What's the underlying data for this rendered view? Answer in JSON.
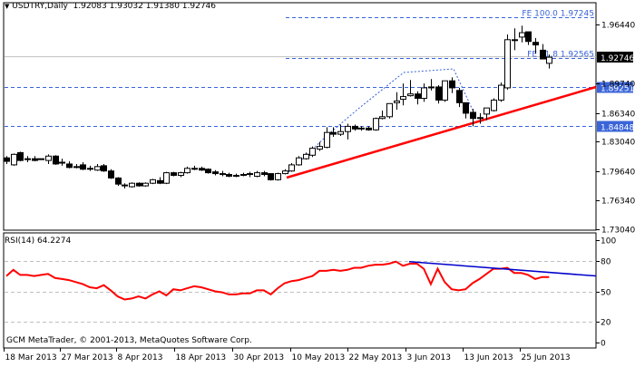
{
  "header": {
    "symbol_timeframe": "USDTRY,Daily",
    "ohlc": "1.92083 1.93032 1.91380 1.92746",
    "dropdown_icon": "triangle-down-icon"
  },
  "rsi_panel": {
    "title": "RSI(14) 64.2274"
  },
  "footer": {
    "copyright": "GCM MetaTrader, © 2001-2013, MetaQuotes Software Corp."
  },
  "colors": {
    "background": "#ffffff",
    "axis": "#000000",
    "level_line": "#3a64d8",
    "level_label_bg": "#3a64d8",
    "trendline": "#ff0000",
    "rsi_line": "#ff0000",
    "rsi_divergence_line": "#0000cc",
    "current_price_line": "#c0c0c0",
    "grid_dash": "#c0c0c0"
  },
  "chart_data": [
    {
      "type": "candlestick",
      "title": "USDTRY,Daily 1.92083 1.93032 1.91380 1.92746",
      "xlabel": "",
      "ylabel": "",
      "ylim": [
        1.7304,
        1.9724
      ],
      "y_ticks": [
        "1.96440",
        "1.92746",
        "1.89740",
        "1.86340",
        "1.83040",
        "1.79640",
        "1.76340",
        "1.73040"
      ],
      "x_ticks": [
        "18 Mar 2013",
        "27 Mar 2013",
        "8 Apr 2013",
        "18 Apr 2013",
        "30 Apr 2013",
        "10 May 2013",
        "22 May 2013",
        "3 Jun 2013",
        "13 Jun 2013",
        "25 Jun 2013"
      ],
      "current_price": {
        "label": "1.92746",
        "value": 1.92746
      },
      "horizontal_levels": [
        {
          "label": "FE 100.0 1.97245",
          "value": 1.97245
        },
        {
          "label": "61.8 1.92565",
          "value": 1.92565,
          "full_label": "FE 61.8 1.92565"
        },
        {
          "label": "1.89251",
          "value": 1.89251
        },
        {
          "label": "1.84848",
          "value": 1.84848
        }
      ],
      "trendline": {
        "from": {
          "date": "~8 May 2013",
          "value": 1.786
        },
        "to": {
          "date": "right edge",
          "value": 1.893
        }
      },
      "candles": [
        {
          "o": 1.812,
          "h": 1.814,
          "l": 1.805,
          "c": 1.808
        },
        {
          "o": 1.804,
          "h": 1.817,
          "l": 1.803,
          "c": 1.816
        },
        {
          "o": 1.818,
          "h": 1.819,
          "l": 1.808,
          "c": 1.809
        },
        {
          "o": 1.81,
          "h": 1.814,
          "l": 1.807,
          "c": 1.811
        },
        {
          "o": 1.811,
          "h": 1.814,
          "l": 1.808,
          "c": 1.809
        },
        {
          "o": 1.811,
          "h": 1.811,
          "l": 1.811,
          "c": 1.811
        },
        {
          "o": 1.809,
          "h": 1.816,
          "l": 1.805,
          "c": 1.814
        },
        {
          "o": 1.814,
          "h": 1.815,
          "l": 1.804,
          "c": 1.805
        },
        {
          "o": 1.807,
          "h": 1.811,
          "l": 1.803,
          "c": 1.806
        },
        {
          "o": 1.805,
          "h": 1.808,
          "l": 1.8,
          "c": 1.801
        },
        {
          "o": 1.802,
          "h": 1.805,
          "l": 1.8,
          "c": 1.801
        },
        {
          "o": 1.804,
          "h": 1.807,
          "l": 1.798,
          "c": 1.799
        },
        {
          "o": 1.8,
          "h": 1.803,
          "l": 1.797,
          "c": 1.799
        },
        {
          "o": 1.798,
          "h": 1.805,
          "l": 1.797,
          "c": 1.802
        },
        {
          "o": 1.803,
          "h": 1.805,
          "l": 1.796,
          "c": 1.797
        },
        {
          "o": 1.797,
          "h": 1.799,
          "l": 1.788,
          "c": 1.789
        },
        {
          "o": 1.789,
          "h": 1.79,
          "l": 1.78,
          "c": 1.782
        },
        {
          "o": 1.781,
          "h": 1.783,
          "l": 1.777,
          "c": 1.78
        },
        {
          "o": 1.779,
          "h": 1.784,
          "l": 1.778,
          "c": 1.783
        },
        {
          "o": 1.783,
          "h": 1.784,
          "l": 1.779,
          "c": 1.78
        },
        {
          "o": 1.78,
          "h": 1.784,
          "l": 1.779,
          "c": 1.783
        },
        {
          "o": 1.783,
          "h": 1.788,
          "l": 1.782,
          "c": 1.787
        },
        {
          "o": 1.786,
          "h": 1.79,
          "l": 1.782,
          "c": 1.783
        },
        {
          "o": 1.783,
          "h": 1.796,
          "l": 1.782,
          "c": 1.795
        },
        {
          "o": 1.795,
          "h": 1.796,
          "l": 1.791,
          "c": 1.792
        },
        {
          "o": 1.792,
          "h": 1.796,
          "l": 1.79,
          "c": 1.795
        },
        {
          "o": 1.795,
          "h": 1.802,
          "l": 1.794,
          "c": 1.8
        },
        {
          "o": 1.8,
          "h": 1.803,
          "l": 1.798,
          "c": 1.799
        },
        {
          "o": 1.8,
          "h": 1.802,
          "l": 1.797,
          "c": 1.798
        },
        {
          "o": 1.799,
          "h": 1.8,
          "l": 1.794,
          "c": 1.795
        },
        {
          "o": 1.796,
          "h": 1.798,
          "l": 1.792,
          "c": 1.794
        },
        {
          "o": 1.794,
          "h": 1.797,
          "l": 1.791,
          "c": 1.793
        },
        {
          "o": 1.793,
          "h": 1.795,
          "l": 1.79,
          "c": 1.791
        },
        {
          "o": 1.791,
          "h": 1.794,
          "l": 1.79,
          "c": 1.792
        },
        {
          "o": 1.792,
          "h": 1.795,
          "l": 1.791,
          "c": 1.793
        },
        {
          "o": 1.793,
          "h": 1.796,
          "l": 1.79,
          "c": 1.794
        },
        {
          "o": 1.791,
          "h": 1.797,
          "l": 1.79,
          "c": 1.795
        },
        {
          "o": 1.795,
          "h": 1.797,
          "l": 1.791,
          "c": 1.793
        },
        {
          "o": 1.794,
          "h": 1.794,
          "l": 1.786,
          "c": 1.787
        },
        {
          "o": 1.787,
          "h": 1.795,
          "l": 1.786,
          "c": 1.794
        },
        {
          "o": 1.794,
          "h": 1.799,
          "l": 1.793,
          "c": 1.797
        },
        {
          "o": 1.797,
          "h": 1.806,
          "l": 1.796,
          "c": 1.804
        },
        {
          "o": 1.804,
          "h": 1.814,
          "l": 1.803,
          "c": 1.812
        },
        {
          "o": 1.811,
          "h": 1.818,
          "l": 1.81,
          "c": 1.816
        },
        {
          "o": 1.815,
          "h": 1.825,
          "l": 1.813,
          "c": 1.823
        },
        {
          "o": 1.822,
          "h": 1.83,
          "l": 1.82,
          "c": 1.825
        },
        {
          "o": 1.824,
          "h": 1.847,
          "l": 1.823,
          "c": 1.841
        },
        {
          "o": 1.841,
          "h": 1.847,
          "l": 1.836,
          "c": 1.839
        },
        {
          "o": 1.839,
          "h": 1.85,
          "l": 1.837,
          "c": 1.842
        },
        {
          "o": 1.842,
          "h": 1.851,
          "l": 1.833,
          "c": 1.848
        },
        {
          "o": 1.848,
          "h": 1.85,
          "l": 1.843,
          "c": 1.845
        },
        {
          "o": 1.845,
          "h": 1.848,
          "l": 1.843,
          "c": 1.846
        },
        {
          "o": 1.846,
          "h": 1.848,
          "l": 1.843,
          "c": 1.844
        },
        {
          "o": 1.844,
          "h": 1.858,
          "l": 1.843,
          "c": 1.857
        },
        {
          "o": 1.857,
          "h": 1.866,
          "l": 1.856,
          "c": 1.859
        },
        {
          "o": 1.859,
          "h": 1.872,
          "l": 1.857,
          "c": 1.874
        },
        {
          "o": 1.875,
          "h": 1.887,
          "l": 1.867,
          "c": 1.877
        },
        {
          "o": 1.879,
          "h": 1.897,
          "l": 1.872,
          "c": 1.882
        },
        {
          "o": 1.883,
          "h": 1.901,
          "l": 1.882,
          "c": 1.885
        },
        {
          "o": 1.885,
          "h": 1.888,
          "l": 1.873,
          "c": 1.88
        },
        {
          "o": 1.88,
          "h": 1.897,
          "l": 1.876,
          "c": 1.892
        },
        {
          "o": 1.892,
          "h": 1.902,
          "l": 1.889,
          "c": 1.893
        },
        {
          "o": 1.893,
          "h": 1.895,
          "l": 1.874,
          "c": 1.878
        },
        {
          "o": 1.878,
          "h": 1.9,
          "l": 1.876,
          "c": 1.9
        },
        {
          "o": 1.9,
          "h": 1.904,
          "l": 1.886,
          "c": 1.892
        },
        {
          "o": 1.889,
          "h": 1.892,
          "l": 1.87,
          "c": 1.875
        },
        {
          "o": 1.875,
          "h": 1.874,
          "l": 1.857,
          "c": 1.863
        },
        {
          "o": 1.864,
          "h": 1.868,
          "l": 1.848,
          "c": 1.857
        },
        {
          "o": 1.857,
          "h": 1.863,
          "l": 1.851,
          "c": 1.858
        },
        {
          "o": 1.862,
          "h": 1.866,
          "l": 1.855,
          "c": 1.869
        },
        {
          "o": 1.866,
          "h": 1.88,
          "l": 1.865,
          "c": 1.878
        },
        {
          "o": 1.878,
          "h": 1.898,
          "l": 1.876,
          "c": 1.895
        },
        {
          "o": 1.892,
          "h": 1.953,
          "l": 1.89,
          "c": 1.947
        },
        {
          "o": 1.946,
          "h": 1.96,
          "l": 1.935,
          "c": 1.947
        },
        {
          "o": 1.95,
          "h": 1.963,
          "l": 1.944,
          "c": 1.955
        },
        {
          "o": 1.956,
          "h": 1.955,
          "l": 1.941,
          "c": 1.945
        },
        {
          "o": 1.944,
          "h": 1.949,
          "l": 1.931,
          "c": 1.941
        },
        {
          "o": 1.935,
          "h": 1.942,
          "l": 1.926,
          "c": 1.925
        },
        {
          "o": 1.92,
          "h": 1.93,
          "l": 1.914,
          "c": 1.927
        }
      ]
    },
    {
      "type": "line",
      "title": "RSI(14) 64.2274",
      "ylim": [
        0,
        100
      ],
      "y_ticks": [
        100,
        80,
        50,
        20,
        0
      ],
      "grid_levels": [
        80,
        50,
        20
      ],
      "series": [
        {
          "name": "RSI(14)",
          "values": [
            65,
            71,
            66,
            66,
            65,
            66,
            67,
            63,
            62,
            61,
            59,
            57,
            54,
            53,
            56,
            51,
            45,
            42,
            43,
            45,
            43,
            47,
            50,
            46,
            52,
            51,
            53,
            55,
            54,
            52,
            50,
            49,
            47,
            47,
            48,
            48,
            51,
            51,
            47,
            53,
            58,
            60,
            61,
            63,
            65,
            70,
            70,
            71,
            70,
            71,
            73,
            73,
            75,
            76,
            76,
            77,
            79,
            75,
            77,
            77,
            72,
            57,
            72,
            59,
            52,
            51,
            52,
            58,
            62,
            67,
            72,
            72,
            73,
            68,
            68,
            66,
            62,
            64,
            64
          ],
          "color": "#ff0000"
        },
        {
          "name": "divergence-trendline",
          "from": {
            "x_index": 56,
            "value": 79
          },
          "to": {
            "x_index": "right edge",
            "value": 65
          },
          "color": "#0000cc"
        }
      ]
    }
  ]
}
